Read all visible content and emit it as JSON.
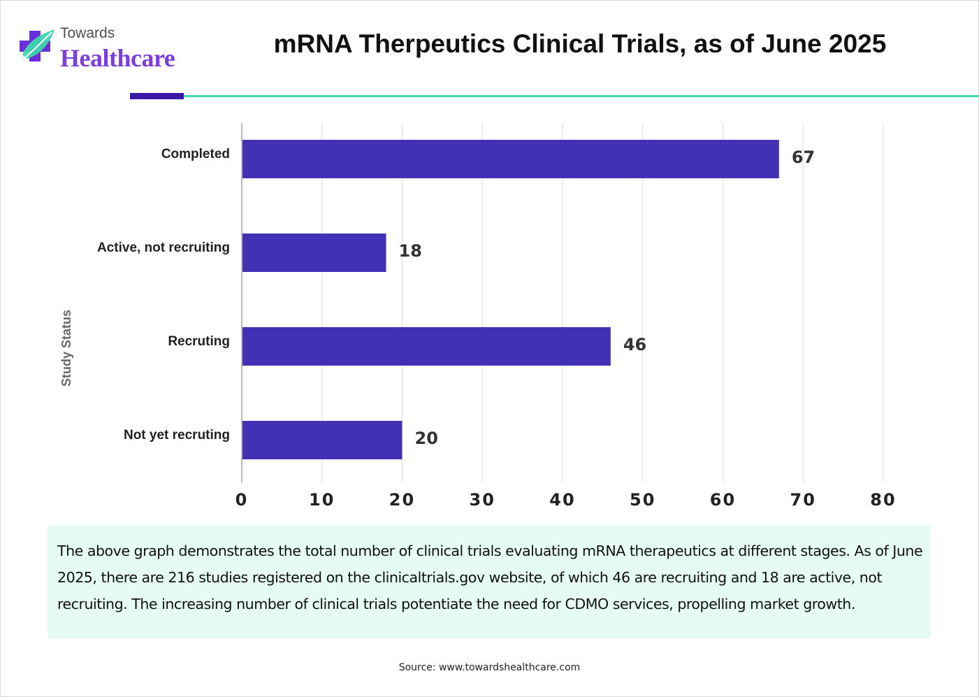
{
  "brand": {
    "line1": "Towards",
    "line2": "Healthcare",
    "icon": "cross-leaf-logo-icon",
    "colors": {
      "purple": "#7b3fe0",
      "teal": "#3ed6b0",
      "dark": "#3a18a8"
    }
  },
  "title": "mRNA Therpeutics Clinical Trials, as of June 2025",
  "chart_data": {
    "type": "bar",
    "orientation": "horizontal",
    "title": "mRNA Therpeutics Clinical Trials, as of June 2025",
    "xlabel": "",
    "ylabel": "Study Status",
    "categories": [
      "Completed",
      "Active, not recruiting",
      "Recruting",
      "Not yet recruting"
    ],
    "values": [
      67,
      18,
      46,
      20
    ],
    "value_labels": [
      "67",
      "18",
      "46",
      "20"
    ],
    "xlim": [
      0,
      80
    ],
    "xticks": [
      0,
      10,
      20,
      30,
      40,
      50,
      60,
      70,
      80
    ],
    "xtick_labels": [
      "0",
      "10",
      "20",
      "30",
      "40",
      "50",
      "60",
      "70",
      "80"
    ],
    "bar_color": "#4331b5",
    "grid": "vertical",
    "legend": "none"
  },
  "note": "The above graph demonstrates the total number of clinical trials evaluating mRNA therapeutics at different stages. As of June 2025, there are 216 studies registered on the clinicaltrials.gov website, of which 46 are recruiting and 18 are active, not recruiting. The increasing number of clinical trials potentiate the need for CDMO services, propelling market growth.",
  "source": "Source: www.towardshealthcare.com"
}
